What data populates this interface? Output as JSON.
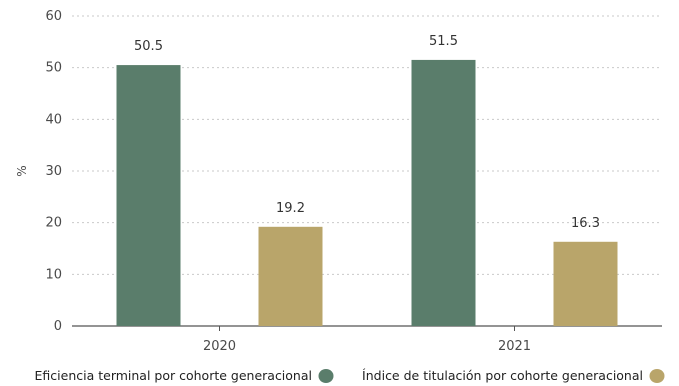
{
  "chart_data": {
    "type": "bar",
    "categories": [
      "2020",
      "2021"
    ],
    "series": [
      {
        "name": "Eficiencia terminal por cohorte generacional",
        "values": [
          50.5,
          51.5
        ],
        "color": "#5a7d6b"
      },
      {
        "name": "Índice de titulación por cohorte generacional",
        "values": [
          19.2,
          16.3
        ],
        "color": "#b9a56a"
      }
    ],
    "ylabel": "%",
    "xlabel": "",
    "ylim": [
      0,
      60
    ],
    "yticks": [
      0,
      10,
      20,
      30,
      40,
      50,
      60
    ],
    "grid": true,
    "legend_position": "bottom"
  }
}
